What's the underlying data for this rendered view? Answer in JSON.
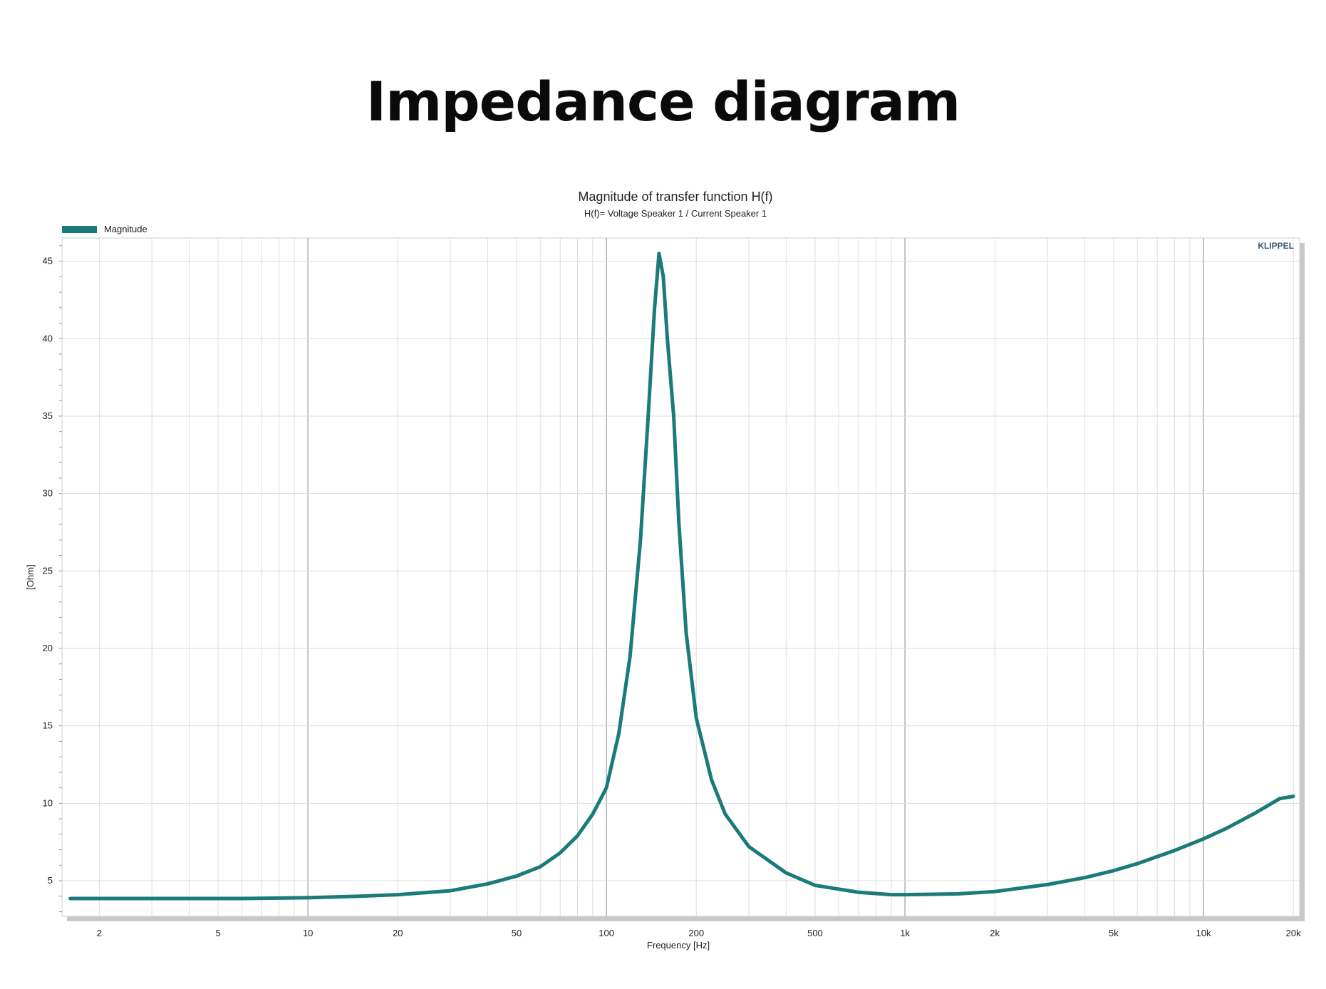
{
  "page": {
    "title": "Impedance diagram"
  },
  "chart_data": {
    "type": "line",
    "title": "Magnitude of transfer function H(f)",
    "subtitle": "H(f)= Voltage Speaker 1 / Current Speaker 1",
    "xlabel": "Frequency [Hz]",
    "ylabel": "[Ohm]",
    "watermark": "KLIPPEL",
    "x_scale": "log",
    "xlim": [
      1.5,
      21000
    ],
    "ylim": [
      2.7,
      46.5
    ],
    "grid": true,
    "legend_position": "top-left",
    "x_ticks": [
      {
        "value": 2,
        "label": "2"
      },
      {
        "value": 5,
        "label": "5"
      },
      {
        "value": 10,
        "label": "10"
      },
      {
        "value": 20,
        "label": "20"
      },
      {
        "value": 50,
        "label": "50"
      },
      {
        "value": 100,
        "label": "100"
      },
      {
        "value": 200,
        "label": "200"
      },
      {
        "value": 500,
        "label": "500"
      },
      {
        "value": 1000,
        "label": "1k"
      },
      {
        "value": 2000,
        "label": "2k"
      },
      {
        "value": 5000,
        "label": "5k"
      },
      {
        "value": 10000,
        "label": "10k"
      },
      {
        "value": 20000,
        "label": "20k"
      }
    ],
    "y_ticks": [
      {
        "value": 5,
        "label": "5"
      },
      {
        "value": 10,
        "label": "10"
      },
      {
        "value": 15,
        "label": "15"
      },
      {
        "value": 20,
        "label": "20"
      },
      {
        "value": 25,
        "label": "25"
      },
      {
        "value": 30,
        "label": "30"
      },
      {
        "value": 35,
        "label": "35"
      },
      {
        "value": 40,
        "label": "40"
      },
      {
        "value": 45,
        "label": "45"
      }
    ],
    "series": [
      {
        "name": "Magnitude",
        "color": "#1b7a7a",
        "points": [
          [
            1.6,
            3.85
          ],
          [
            3,
            3.85
          ],
          [
            6,
            3.85
          ],
          [
            10,
            3.9
          ],
          [
            15,
            4.0
          ],
          [
            20,
            4.1
          ],
          [
            30,
            4.35
          ],
          [
            40,
            4.8
          ],
          [
            50,
            5.3
          ],
          [
            60,
            5.9
          ],
          [
            70,
            6.8
          ],
          [
            80,
            7.9
          ],
          [
            90,
            9.3
          ],
          [
            100,
            11.0
          ],
          [
            110,
            14.5
          ],
          [
            120,
            19.5
          ],
          [
            130,
            27.0
          ],
          [
            138,
            35.0
          ],
          [
            145,
            42.0
          ],
          [
            150,
            45.5
          ],
          [
            155,
            44.0
          ],
          [
            160,
            40.0
          ],
          [
            168,
            35.0
          ],
          [
            175,
            28.0
          ],
          [
            185,
            21.0
          ],
          [
            200,
            15.5
          ],
          [
            225,
            11.5
          ],
          [
            250,
            9.3
          ],
          [
            300,
            7.2
          ],
          [
            400,
            5.5
          ],
          [
            500,
            4.7
          ],
          [
            700,
            4.25
          ],
          [
            900,
            4.1
          ],
          [
            1000,
            4.1
          ],
          [
            1500,
            4.15
          ],
          [
            2000,
            4.3
          ],
          [
            3000,
            4.75
          ],
          [
            4000,
            5.2
          ],
          [
            5000,
            5.65
          ],
          [
            6000,
            6.1
          ],
          [
            8000,
            6.95
          ],
          [
            10000,
            7.7
          ],
          [
            12000,
            8.4
          ],
          [
            15000,
            9.4
          ],
          [
            18000,
            10.3
          ],
          [
            20000,
            10.45
          ]
        ]
      }
    ]
  }
}
